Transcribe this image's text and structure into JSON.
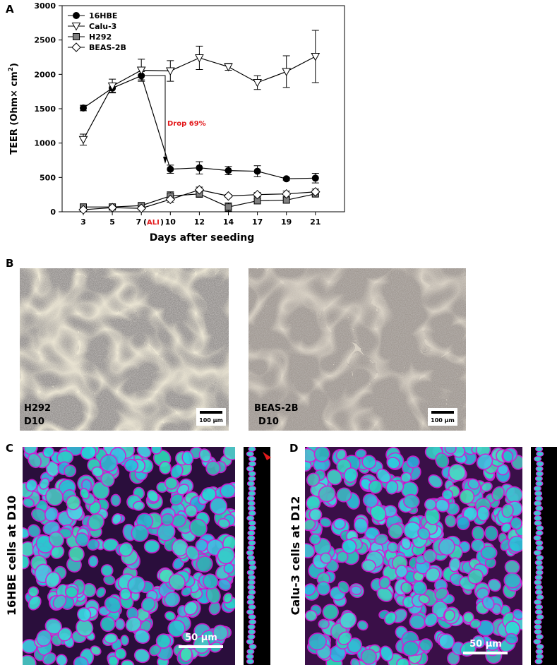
{
  "chart_data": {
    "type": "line",
    "panel": "A",
    "ylabel": [
      "TEER (Ohm× cm",
      "2",
      ")"
    ],
    "xlabel": "Days after seeding",
    "categories": [
      "3",
      "5",
      "7",
      "10",
      "12",
      "14",
      "17",
      "19",
      "21"
    ],
    "ali_label": [
      "(",
      "ALI",
      ")"
    ],
    "annotation": "Drop 69%",
    "annotation_color": "#e31a1c",
    "ylim": [
      0,
      3000
    ],
    "yticks": [
      0,
      500,
      1000,
      1500,
      2000,
      2500,
      3000
    ],
    "legend": "upper left",
    "series": [
      {
        "name": "16HBE",
        "marker": "circle",
        "color": "#000000",
        "values": [
          1510,
          1800,
          1980,
          620,
          640,
          600,
          590,
          480,
          490
        ],
        "errors": [
          40,
          60,
          60,
          60,
          90,
          60,
          80,
          20,
          70
        ]
      },
      {
        "name": "Calu-3",
        "marker": "triangle-down",
        "color": "#ffffff",
        "values": [
          1050,
          1830,
          2060,
          2050,
          2240,
          2110,
          1880,
          2040,
          2260
        ],
        "errors": [
          80,
          100,
          160,
          150,
          170,
          50,
          100,
          230,
          380
        ]
      },
      {
        "name": "H292",
        "marker": "square",
        "color": "#808080",
        "values": [
          70,
          70,
          90,
          230,
          260,
          70,
          160,
          170,
          260
        ],
        "errors": [
          20,
          20,
          20,
          60,
          50,
          60,
          30,
          30,
          30
        ]
      },
      {
        "name": "BEAS-2B",
        "marker": "diamond",
        "color": "#ffffff",
        "values": [
          30,
          60,
          50,
          180,
          320,
          230,
          250,
          260,
          290
        ],
        "errors": [
          20,
          20,
          20,
          40,
          40,
          20,
          30,
          40,
          40
        ]
      }
    ]
  },
  "panel_b": {
    "label": "B",
    "left": {
      "cell": "H292",
      "day": "D10",
      "scale": "100 µm"
    },
    "right": {
      "cell": "BEAS-2B",
      "day": "D10",
      "scale": "100 µm"
    }
  },
  "panel_c": {
    "label": "C",
    "caption": "16HBE cells at D10",
    "scale": "50 µm"
  },
  "panel_d": {
    "label": "D",
    "caption": "Calu-3 cells at D12",
    "scale": "50 µm"
  }
}
